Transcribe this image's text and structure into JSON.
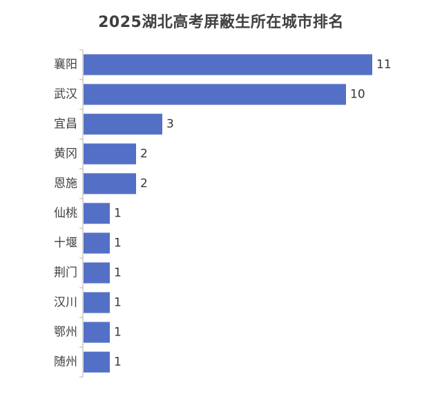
{
  "chart_data": {
    "type": "bar",
    "orientation": "horizontal",
    "title": "2025湖北高考屏蔽生所在城市排名",
    "categories": [
      "襄阳",
      "武汉",
      "宜昌",
      "黄冈",
      "恩施",
      "仙桃",
      "十堰",
      "荆门",
      "汉川",
      "鄂州",
      "随州"
    ],
    "values": [
      11,
      10,
      3,
      2,
      2,
      1,
      1,
      1,
      1,
      1,
      1
    ],
    "value_labels": [
      "11",
      "10",
      "3",
      "2",
      "2",
      "1",
      "1",
      "1",
      "1",
      "1",
      "1"
    ],
    "xlim": [
      0,
      11
    ],
    "grid": false,
    "legend": "none",
    "bar_color": "#5470c6"
  }
}
